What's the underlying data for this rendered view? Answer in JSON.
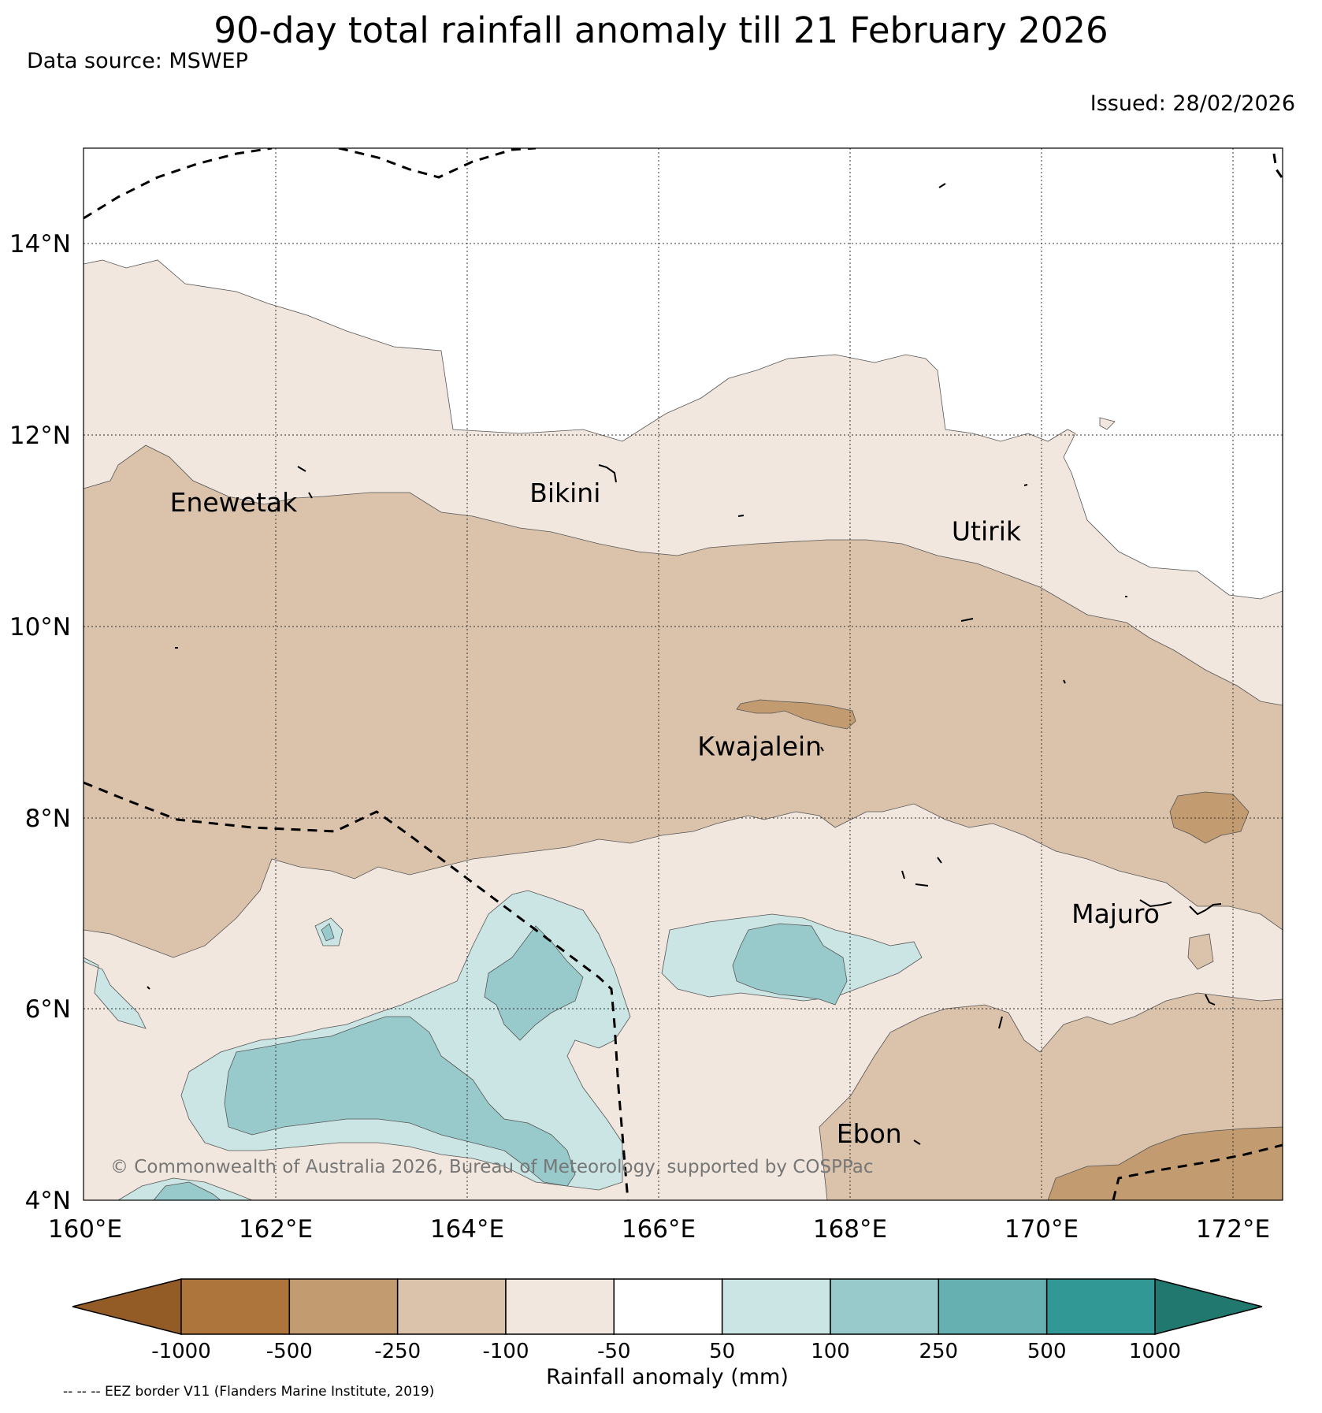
{
  "title": "90-day total rainfall anomaly till 21 February 2026",
  "data_source": "Data source: MSWEP",
  "issued": "Issued: 28/02/2026",
  "map": {
    "lon_ticks": [
      "160°E",
      "162°E",
      "164°E",
      "166°E",
      "168°E",
      "170°E",
      "172°E"
    ],
    "lat_ticks": [
      "14°N",
      "12°N",
      "10°N",
      "8°N",
      "6°N",
      "4°N"
    ],
    "lon_range": [
      160,
      172.5
    ],
    "lat_range": [
      4,
      15
    ],
    "places": [
      {
        "name": "Enewetak",
        "lon": 160.9,
        "lat": 11.2
      },
      {
        "name": "Bikini",
        "lon": 164.65,
        "lat": 11.3
      },
      {
        "name": "Utirik",
        "lon": 169.05,
        "lat": 10.9
      },
      {
        "name": "Kwajalein",
        "lon": 166.4,
        "lat": 8.65
      },
      {
        "name": "Majuro",
        "lon": 170.3,
        "lat": 6.9
      },
      {
        "name": "Ebon",
        "lon": 167.85,
        "lat": 4.6
      }
    ],
    "copyright": "© Commonwealth of Australia 2026, Bureau of Meteorology, supported by COSPPac",
    "grid": true
  },
  "colorbar": {
    "title": "Rainfall anomaly (mm)",
    "ticks": [
      "-1000",
      "-500",
      "-250",
      "-100",
      "-50",
      "50",
      "100",
      "250",
      "500",
      "1000"
    ],
    "under_color": "#935b26",
    "colors": [
      "#ad743c",
      "#c39b70",
      "#dbc2aa",
      "#f1e7de",
      "#ffffff",
      "#cbe5e4",
      "#99cacb",
      "#66b0b1",
      "#319895"
    ],
    "over_color": "#21786f"
  },
  "eez_note": "-- -- -- EEZ border V11 (Flanders Marine Institute, 2019)"
}
